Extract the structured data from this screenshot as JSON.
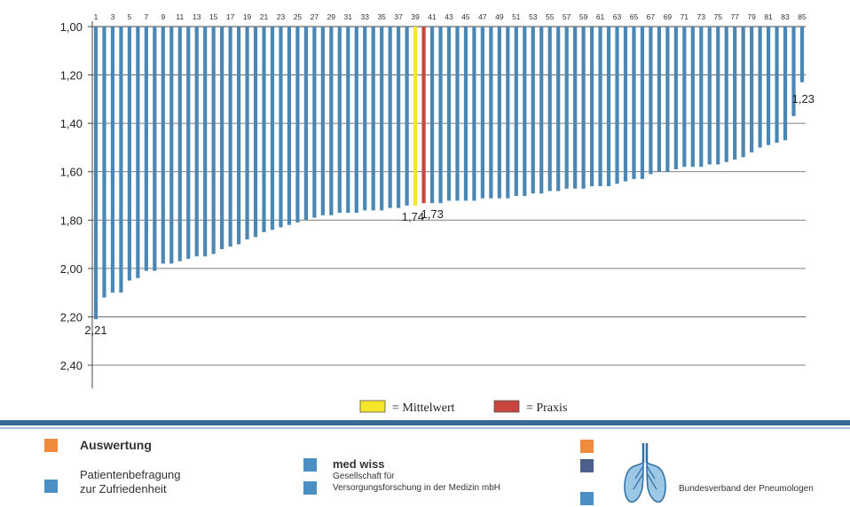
{
  "chart_data": {
    "type": "bar",
    "orientation": "vertical-from-top",
    "categories": [
      1,
      2,
      3,
      4,
      5,
      6,
      7,
      8,
      9,
      10,
      11,
      12,
      13,
      14,
      15,
      16,
      17,
      18,
      19,
      20,
      21,
      22,
      23,
      24,
      25,
      26,
      27,
      28,
      29,
      30,
      31,
      32,
      33,
      34,
      35,
      36,
      37,
      38,
      39,
      40,
      41,
      42,
      43,
      44,
      45,
      46,
      47,
      48,
      49,
      50,
      51,
      52,
      53,
      54,
      55,
      56,
      57,
      58,
      59,
      60,
      61,
      62,
      63,
      64,
      65,
      66,
      67,
      68,
      69,
      70,
      71,
      72,
      73,
      74,
      75,
      76,
      77,
      78,
      79,
      80,
      81,
      82,
      83,
      84,
      85
    ],
    "top_labels": [
      "1",
      "3",
      "5",
      "7",
      "9",
      "11",
      "13",
      "15",
      "17",
      "19",
      "21",
      "23",
      "25",
      "27",
      "29",
      "31",
      "33",
      "35",
      "37",
      "39",
      "41",
      "43",
      "45",
      "47",
      "49",
      "51",
      "53",
      "55",
      "57",
      "59",
      "61",
      "63",
      "65",
      "67",
      "69",
      "71",
      "73",
      "75",
      "77",
      "79",
      "81",
      "83",
      "85"
    ],
    "values": [
      2.21,
      2.12,
      2.1,
      2.1,
      2.05,
      2.04,
      2.01,
      2.01,
      1.98,
      1.98,
      1.97,
      1.96,
      1.95,
      1.95,
      1.94,
      1.92,
      1.91,
      1.9,
      1.88,
      1.87,
      1.85,
      1.84,
      1.83,
      1.82,
      1.81,
      1.8,
      1.79,
      1.78,
      1.78,
      1.77,
      1.77,
      1.77,
      1.76,
      1.76,
      1.76,
      1.75,
      1.75,
      1.74,
      1.74,
      1.73,
      1.73,
      1.73,
      1.72,
      1.72,
      1.72,
      1.72,
      1.71,
      1.71,
      1.71,
      1.71,
      1.7,
      1.7,
      1.69,
      1.69,
      1.68,
      1.68,
      1.67,
      1.67,
      1.67,
      1.66,
      1.66,
      1.66,
      1.65,
      1.64,
      1.63,
      1.63,
      1.61,
      1.6,
      1.6,
      1.59,
      1.58,
      1.58,
      1.58,
      1.57,
      1.57,
      1.56,
      1.55,
      1.54,
      1.52,
      1.5,
      1.49,
      1.48,
      1.47,
      1.37,
      1.23
    ],
    "highlight": {
      "mean_index": 39,
      "practice_index": 40
    },
    "yticks": [
      "1,00",
      "1,20",
      "1,40",
      "1,60",
      "1,80",
      "2,00",
      "2,20",
      "2,40"
    ],
    "ylim": [
      1.0,
      2.4
    ],
    "data_labels": [
      {
        "index": 1,
        "text": "2,21"
      },
      {
        "index": 39,
        "text": "1,74"
      },
      {
        "index": 40,
        "text": "1,73"
      },
      {
        "index": 85,
        "text": "1,23"
      }
    ],
    "legend": [
      {
        "label": "= Mittelwert",
        "color": "#f6e62b"
      },
      {
        "label": "= Praxis",
        "color": "#c8453f"
      }
    ],
    "colors": {
      "bar": "#4b87b5",
      "mean": "#f6e62b",
      "practice": "#c8453f",
      "grid": "#555555"
    }
  },
  "footer": {
    "auswertung": "Auswertung",
    "patient_line1": "Patientenbefragung",
    "patient_line2": "zur Zufriedenheit",
    "medwiss_title": "med wiss",
    "medwiss_line1": "Gesellschaft für",
    "medwiss_line2": "Versorgungsforschung  in der Medizin mbH",
    "org_name": "Bundesverband der Pneumologen",
    "colors": {
      "orange": "#f08a3c",
      "blue": "#4b8fc4",
      "navy": "#4c5f8c"
    }
  }
}
